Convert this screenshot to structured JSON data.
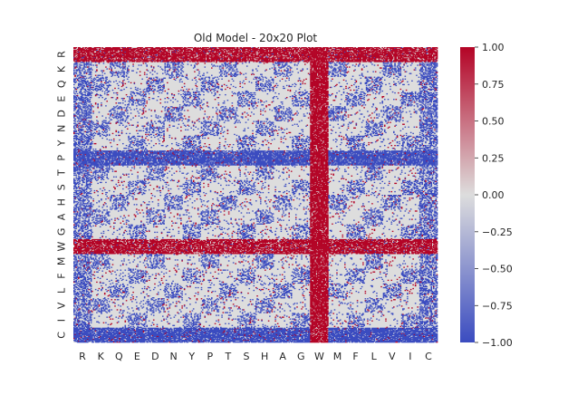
{
  "chart_data": {
    "type": "heatmap",
    "title": "Old Model - 20x20 Plot",
    "xlabel": "",
    "ylabel": "",
    "x_tick_labels": [
      "R",
      "K",
      "Q",
      "E",
      "D",
      "N",
      "Y",
      "P",
      "T",
      "S",
      "H",
      "A",
      "G",
      "W",
      "M",
      "F",
      "L",
      "V",
      "I",
      "C"
    ],
    "y_tick_labels": [
      "R",
      "K",
      "Q",
      "E",
      "D",
      "N",
      "Y",
      "P",
      "T",
      "S",
      "H",
      "A",
      "G",
      "W",
      "M",
      "F",
      "L",
      "V",
      "I",
      "C"
    ],
    "colorbar": {
      "min": -1.0,
      "max": 1.0,
      "tick_values": [
        1.0,
        0.75,
        0.5,
        0.25,
        0.0,
        -0.25,
        -0.5,
        -0.75,
        -1.0
      ],
      "tick_labels": [
        "1.00",
        "0.75",
        "0.50",
        "0.25",
        "0.00",
        "−0.25",
        "−0.50",
        "−0.75",
        "−1.00"
      ],
      "colormap": "coolwarm"
    },
    "value_range": [
      -1,
      1
    ],
    "grid": false,
    "regions": {
      "dense_positive_rows": [
        "R",
        "W"
      ],
      "dense_negative_rows": [
        "P",
        "C"
      ],
      "dense_positive_columns": [
        "W"
      ],
      "dense_negative_columns": [
        "R",
        "C"
      ]
    }
  },
  "colors": {
    "positive": "#b40426",
    "neutral": "#dddddd",
    "negative": "#3b4cc0",
    "text": "#262626"
  }
}
